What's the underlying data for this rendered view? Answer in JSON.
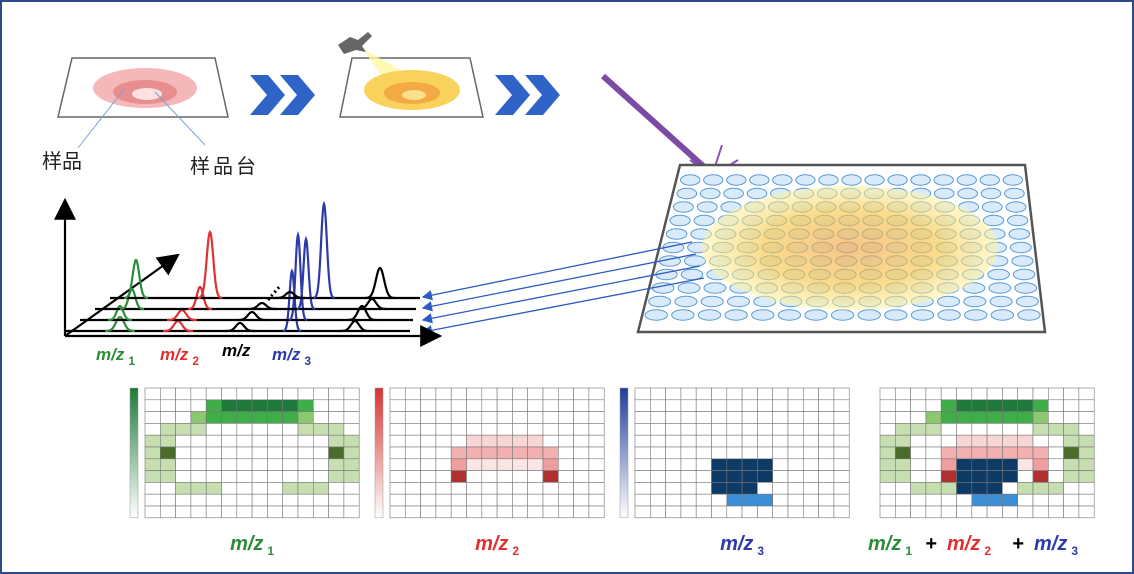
{
  "labels": {
    "sample": "样品",
    "stage": "样品台"
  },
  "spectrum": {
    "mz1": {
      "text": "m/z",
      "sub": "1"
    },
    "mz2": {
      "text": "m/z",
      "sub": "2"
    },
    "mz": "m/z",
    "mz3": {
      "text": "m/z",
      "sub": "3"
    }
  },
  "images": [
    {
      "text": "m/z",
      "sub": "1"
    },
    {
      "text": "m/z",
      "sub": "2"
    },
    {
      "text": "m/z",
      "sub": "3"
    }
  ],
  "combined": {
    "parts": [
      {
        "text": "m/z",
        "sub": "1"
      },
      {
        "text": "m/z",
        "sub": "2"
      },
      {
        "text": "m/z",
        "sub": "3"
      }
    ],
    "plus": "+"
  }
}
